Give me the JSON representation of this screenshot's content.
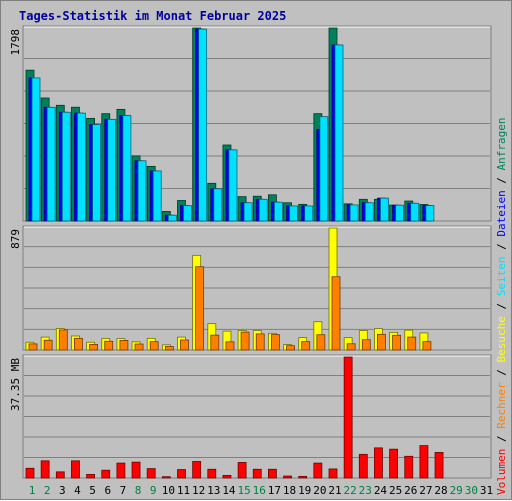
{
  "chart_data": {
    "type": "bar",
    "title": "Tages-Statistik im Monat Februar 2025",
    "days": [
      "1",
      "2",
      "3",
      "4",
      "5",
      "6",
      "7",
      "8",
      "9",
      "10",
      "11",
      "12",
      "13",
      "14",
      "15",
      "16",
      "17",
      "18",
      "19",
      "20",
      "21",
      "22",
      "23",
      "24",
      "25",
      "26",
      "27",
      "28",
      "29",
      "30",
      "31"
    ],
    "weekend_days": [
      "1",
      "2",
      "8",
      "9",
      "15",
      "16",
      "22",
      "23",
      "29",
      "30"
    ],
    "top_panel": {
      "ymax_label": "1798",
      "ymax": 1798,
      "series": [
        {
          "name": "Anfragen",
          "color": "#00805c",
          "values": [
            1405,
            1146,
            1078,
            1060,
            956,
            1000,
            1040,
            607,
            509,
            89,
            191,
            1798,
            351,
            708,
            227,
            231,
            244,
            170,
            155,
            1000,
            1798,
            160,
            202,
            202,
            148,
            186,
            154,
            0,
            0,
            0,
            0
          ]
        },
        {
          "name": "Dateien",
          "color": "#0000ff",
          "values": [
            1333,
            1059,
            1013,
            1005,
            898,
            947,
            983,
            561,
            466,
            54,
            143,
            1788,
            300,
            663,
            170,
            202,
            175,
            140,
            140,
            853,
            1640,
            150,
            170,
            213,
            147,
            165,
            144,
            0,
            0,
            0,
            0
          ]
        },
        {
          "name": "Seiten",
          "color": "#00e0ff",
          "values": [
            1333,
            1059,
            1013,
            1005,
            898,
            947,
            983,
            561,
            466,
            54,
            143,
            1788,
            300,
            663,
            170,
            202,
            175,
            140,
            140,
            972,
            1640,
            150,
            170,
            213,
            147,
            165,
            144,
            0,
            0,
            0,
            0
          ]
        }
      ]
    },
    "middle_panel": {
      "ymax_label": "879",
      "ymax": 879,
      "series": [
        {
          "name": "Besuche",
          "color": "#ffff00",
          "values": [
            56,
            93,
            155,
            101,
            56,
            83,
            82,
            59,
            84,
            37,
            93,
            682,
            190,
            136,
            140,
            140,
            120,
            39,
            89,
            204,
            879,
            89,
            140,
            154,
            127,
            143,
            123,
            0,
            0,
            0,
            0
          ]
        },
        {
          "name": "Rechner",
          "color": "#ff8000",
          "values": [
            44,
            70,
            145,
            84,
            40,
            63,
            69,
            43,
            60,
            25,
            72,
            600,
            107,
            59,
            129,
            116,
            111,
            31,
            60,
            110,
            528,
            45,
            74,
            113,
            106,
            93,
            60,
            0,
            0,
            0,
            0
          ]
        }
      ]
    },
    "bottom_panel": {
      "ymax_label": "37.35 MB",
      "ymax": 37.35,
      "series": [
        {
          "name": "Volumen",
          "color": "#ff0000",
          "values": [
            3.0,
            5.3,
            1.9,
            5.3,
            1.1,
            2.4,
            4.6,
            4.9,
            2.9,
            0.4,
            2.6,
            5.1,
            2.7,
            0.8,
            4.8,
            2.7,
            2.7,
            0.6,
            0.5,
            4.6,
            2.8,
            37.35,
            7.3,
            9.3,
            8.9,
            6.7,
            10.0,
            7.9,
            0,
            0,
            0
          ]
        }
      ]
    },
    "legend": {
      "items": [
        {
          "label": "Volumen",
          "color": "#ff0000"
        },
        {
          "label": "Rechner",
          "color": "#ff8000"
        },
        {
          "label": "Besuche",
          "color": "#ffff00"
        },
        {
          "label": "Seiten",
          "color": "#00e0ff"
        },
        {
          "label": "Dateien",
          "color": "#0000ff"
        },
        {
          "label": "Anfragen",
          "color": "#00805c"
        }
      ],
      "separator": " / "
    },
    "weekday_label_color": "#00805c",
    "weekend_label_color": "#008040"
  }
}
